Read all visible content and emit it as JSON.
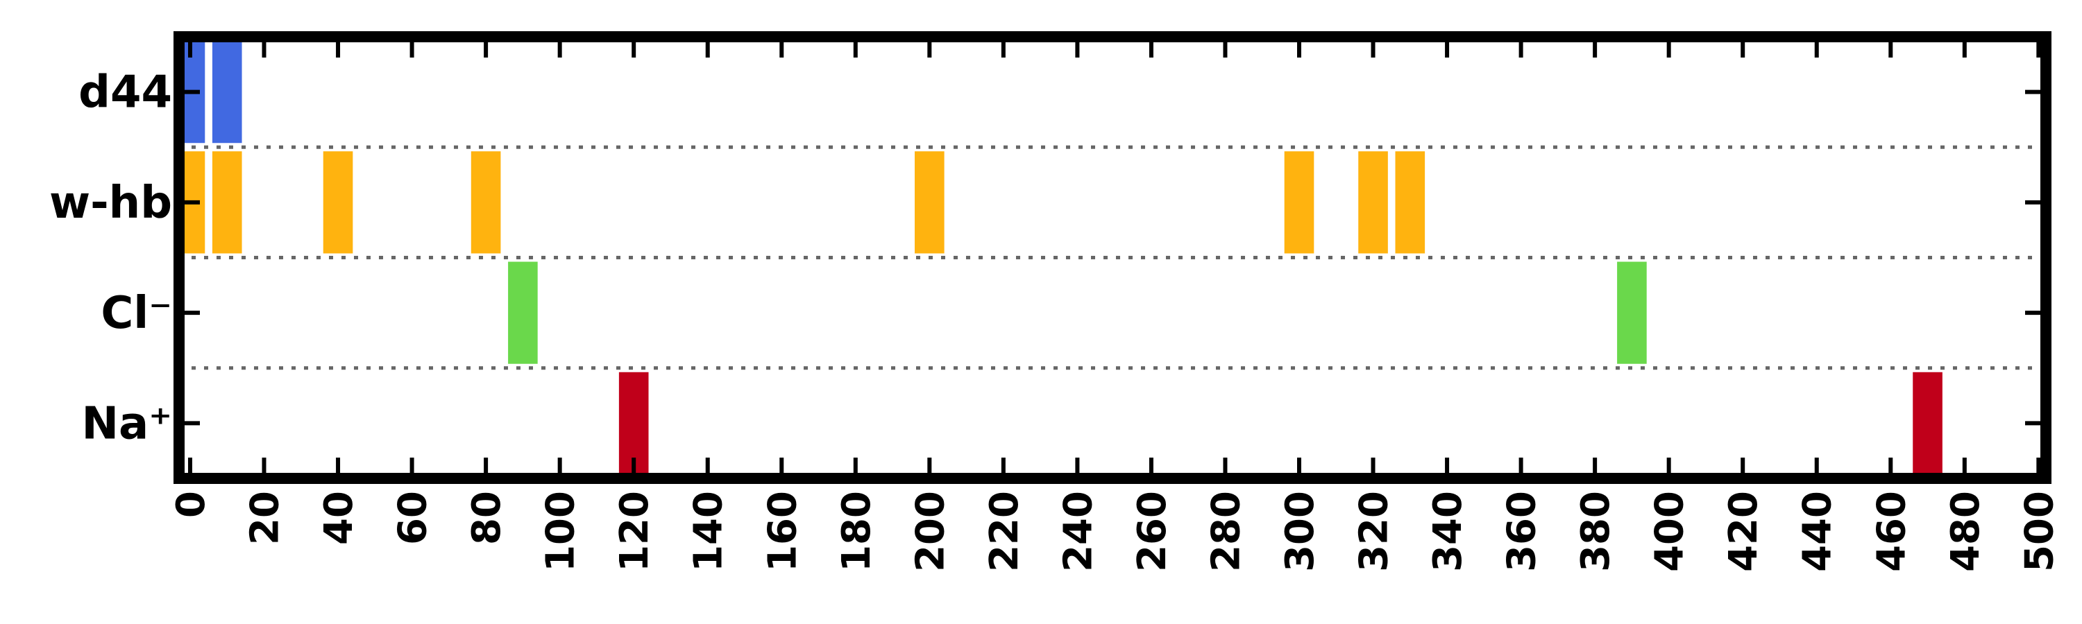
{
  "chart_data": {
    "type": "event-raster",
    "rows": [
      {
        "label": "d44",
        "color": "#4169E1",
        "events": [
          0,
          10
        ]
      },
      {
        "label": "w-hb",
        "color": "#FFB30F",
        "events": [
          0,
          10,
          40,
          80,
          200,
          300,
          320,
          330
        ]
      },
      {
        "label": "Cl⁻",
        "color": "#6AD84B",
        "events": [
          90,
          390
        ]
      },
      {
        "label": "Na⁺",
        "color": "#C0001A",
        "events": [
          120,
          470
        ]
      }
    ],
    "event_width": 8,
    "xlim": [
      -3,
      502
    ],
    "xticks": [
      0,
      20,
      40,
      60,
      80,
      100,
      120,
      140,
      160,
      180,
      200,
      220,
      240,
      260,
      280,
      300,
      320,
      340,
      360,
      380,
      400,
      420,
      440,
      460,
      480,
      500
    ],
    "grid": false,
    "row_separator": "dotted",
    "xlabel": "",
    "ylabel": ""
  }
}
